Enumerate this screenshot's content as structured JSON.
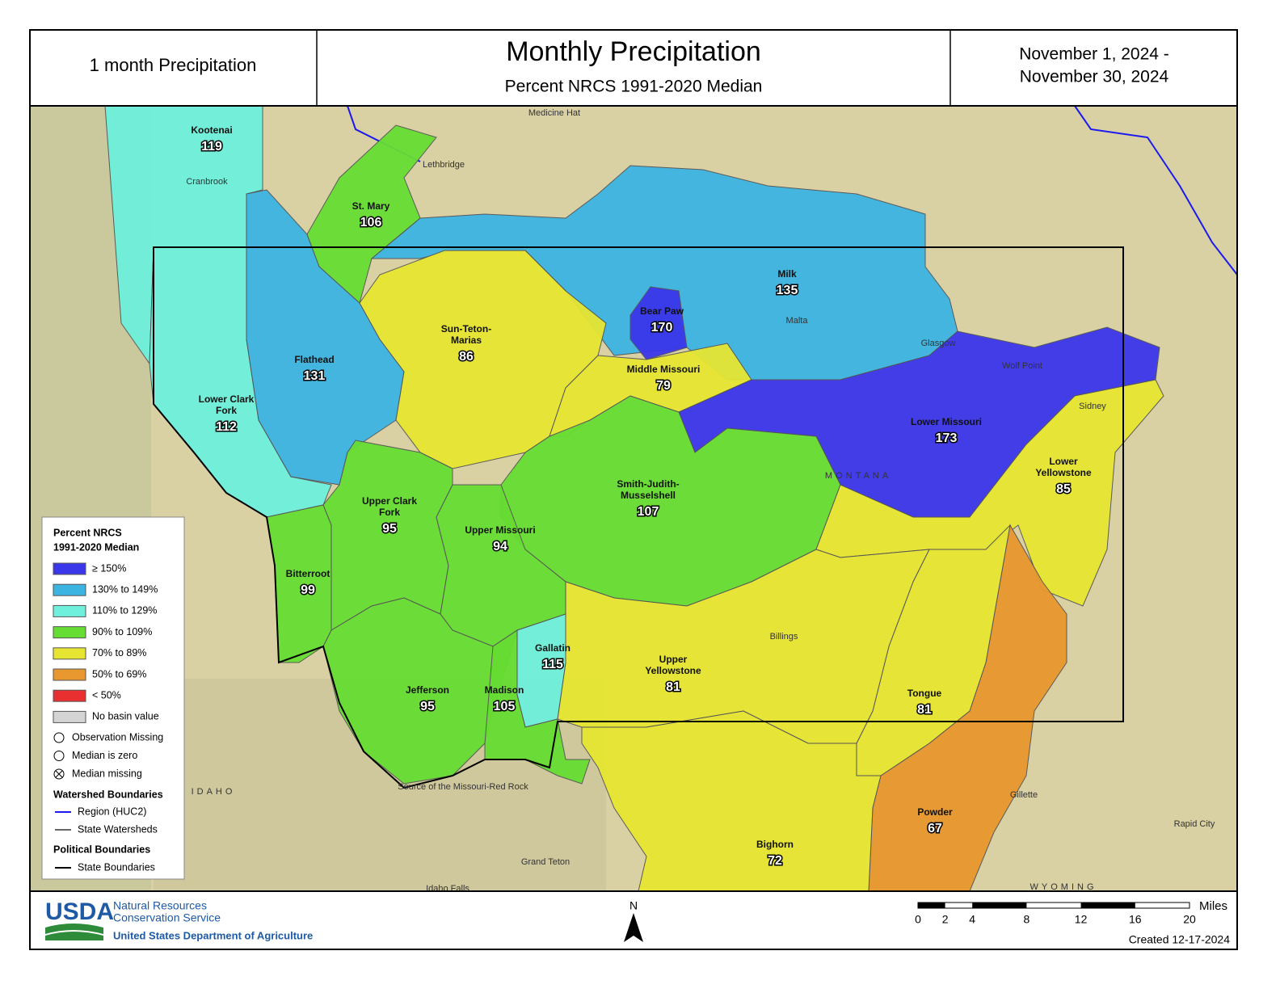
{
  "header": {
    "left": "1 month Precipitation",
    "title": "Monthly Precipitation",
    "subtitle": "Percent NRCS 1991-2020 Median",
    "dates": [
      "November 1, 2024 -",
      "November 30, 2024"
    ]
  },
  "basins": [
    {
      "name": [
        "Kootenai"
      ],
      "value": 119,
      "color": "#6ef0dc"
    },
    {
      "name": [
        "Lower Clark",
        "Fork"
      ],
      "value": 112,
      "color": "#6ef0dc"
    },
    {
      "name": [
        "Flathead"
      ],
      "value": 131,
      "color": "#3cb4e2"
    },
    {
      "name": [
        "St. Mary"
      ],
      "value": 106,
      "color": "#66dd33"
    },
    {
      "name": [
        "Milk"
      ],
      "value": 135,
      "color": "#3cb4e2"
    },
    {
      "name": [
        "Sun-Teton-",
        "Marias"
      ],
      "value": 86,
      "color": "#e6e632"
    },
    {
      "name": [
        "Bear Paw"
      ],
      "value": 170,
      "color": "#3a36ea"
    },
    {
      "name": [
        "Middle Missouri"
      ],
      "value": 79,
      "color": "#e6e632"
    },
    {
      "name": [
        "Lower Missouri"
      ],
      "value": 173,
      "color": "#3a36ea"
    },
    {
      "name": [
        "Smith-Judith-",
        "Musselshell"
      ],
      "value": 107,
      "color": "#66dd33"
    },
    {
      "name": [
        "Lower",
        "Yellowstone"
      ],
      "value": 85,
      "color": "#e6e632"
    },
    {
      "name": [
        "Powder"
      ],
      "value": 67,
      "color": "#e8982e"
    },
    {
      "name": [
        "Tongue"
      ],
      "value": 81,
      "color": "#e6e632"
    },
    {
      "name": [
        "Upper",
        "Yellowstone"
      ],
      "value": 81,
      "color": "#e6e632"
    },
    {
      "name": [
        "Bighorn"
      ],
      "value": 72,
      "color": "#e6e632"
    },
    {
      "name": [
        "Upper Clark",
        "Fork"
      ],
      "value": 95,
      "color": "#66dd33"
    },
    {
      "name": [
        "Upper Missouri"
      ],
      "value": 94,
      "color": "#66dd33"
    },
    {
      "name": [
        "Bitterroot"
      ],
      "value": 99,
      "color": "#66dd33"
    },
    {
      "name": [
        "Jefferson"
      ],
      "value": 95,
      "color": "#66dd33"
    },
    {
      "name": [
        "Gallatin"
      ],
      "value": 115,
      "color": "#6ef0dc"
    },
    {
      "name": [
        "Madison"
      ],
      "value": 105,
      "color": "#66dd33"
    }
  ],
  "places": [
    "Medicine Hat",
    "Lethbridge",
    "Cranbrook",
    "Malta",
    "Glasgow",
    "Wolf Point",
    "Sidney",
    "Billings",
    "Gillette",
    "Rapid City",
    "Grand Teton",
    "Idaho Falls",
    "IDAHO",
    "MONTANA",
    "WYOMING",
    "Source of the Missouri-Red Rock"
  ],
  "legend": {
    "title": [
      "Percent NRCS",
      "1991-2020 Median"
    ],
    "classes": [
      {
        "label": "≥ 150%",
        "color": "#3a36ea"
      },
      {
        "label": "130% to 149%",
        "color": "#3cb4e2"
      },
      {
        "label": "110% to 129%",
        "color": "#6ef0dc"
      },
      {
        "label": "90% to 109%",
        "color": "#66dd33"
      },
      {
        "label": "70% to 89%",
        "color": "#e6e632"
      },
      {
        "label": "50% to 69%",
        "color": "#e8982e"
      },
      {
        "label": "< 50%",
        "color": "#e83030"
      },
      {
        "label": "No basin value",
        "color": "#d4d4d4"
      }
    ],
    "symbols": [
      "Observation Missing",
      "Median is zero",
      "Median missing"
    ],
    "watershed_title": "Watershed Boundaries",
    "watershed_items": [
      "Region (HUC2)",
      "State Watersheds"
    ],
    "political_title": "Political Boundaries",
    "political_items": [
      "State Boundaries"
    ]
  },
  "footer": {
    "logo": "USDA",
    "agency": [
      "Natural Resources",
      "Conservation Service"
    ],
    "department": "United States Department of Agriculture",
    "north": "N",
    "scale_ticks": [
      0,
      2,
      4,
      8,
      12,
      16,
      20
    ],
    "scale_unit": "Miles",
    "created": "Created 12-17-2024"
  }
}
